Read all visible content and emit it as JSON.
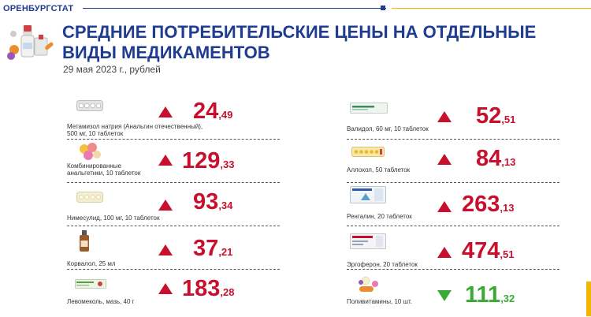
{
  "header": {
    "brand": "ОРЕНБУРГСТАТ",
    "title": "СРЕДНИЕ ПОТРЕБИТЕЛЬСКИЕ ЦЕНЫ НА ОТДЕЛЬНЫЕ ВИДЫ МЕДИКАМЕНТОВ",
    "subtitle": "29 мая 2023 г., рублей"
  },
  "colors": {
    "brand_blue": "#1f3c91",
    "price_red": "#c8102e",
    "price_green": "#3aa935",
    "accent_gold": "#f1b700"
  },
  "left_items": [
    {
      "label_line1": "Метамизол натрия (Анальгин отечественный),",
      "label_line2": "500 мг, 10 таблеток",
      "price_int": "24",
      "price_frac": ",49",
      "trend": "up",
      "icon": "tablet-blister-icon"
    },
    {
      "label_line1": "Комбинированные",
      "label_line2": "анальгетики, 10 таблеток",
      "price_int": "129",
      "price_frac": ",33",
      "trend": "up",
      "icon": "colored-pills-icon"
    },
    {
      "label_line1": "Нимесулид, 100 мг, 10 таблеток",
      "label_line2": "",
      "price_int": "93",
      "price_frac": ",34",
      "trend": "up",
      "icon": "blister-pack-icon"
    },
    {
      "label_line1": "Корвалол, 25 мл",
      "label_line2": "",
      "price_int": "37",
      "price_frac": ",21",
      "trend": "up",
      "icon": "drops-bottle-icon"
    },
    {
      "label_line1": "Левомеколь, мазь, 40 г",
      "label_line2": "",
      "price_int": "183",
      "price_frac": ",28",
      "trend": "up",
      "icon": "ointment-box-icon"
    }
  ],
  "right_items": [
    {
      "label_line1": "Валидол, 60 мг, 10 таблеток",
      "label_line2": "",
      "price_int": "52",
      "price_frac": ",51",
      "trend": "up",
      "icon": "validol-pack-icon"
    },
    {
      "label_line1": "Аллохол, 50 таблеток",
      "label_line2": "",
      "price_int": "84",
      "price_frac": ",13",
      "trend": "up",
      "icon": "yellow-blister-icon"
    },
    {
      "label_line1": "Ренгалин, 20 таблеток",
      "label_line2": "",
      "price_int": "263",
      "price_frac": ",13",
      "trend": "up",
      "icon": "rengalin-box-icon"
    },
    {
      "label_line1": "Эргоферон, 20 таблеток",
      "label_line2": "",
      "price_int": "474",
      "price_frac": ",51",
      "trend": "up",
      "icon": "ergoferon-box-icon"
    },
    {
      "label_line1": "Поливитамины, 10 шт.",
      "label_line2": "",
      "price_int": "111",
      "price_frac": ",32",
      "trend": "down",
      "icon": "vitamins-icon"
    }
  ]
}
